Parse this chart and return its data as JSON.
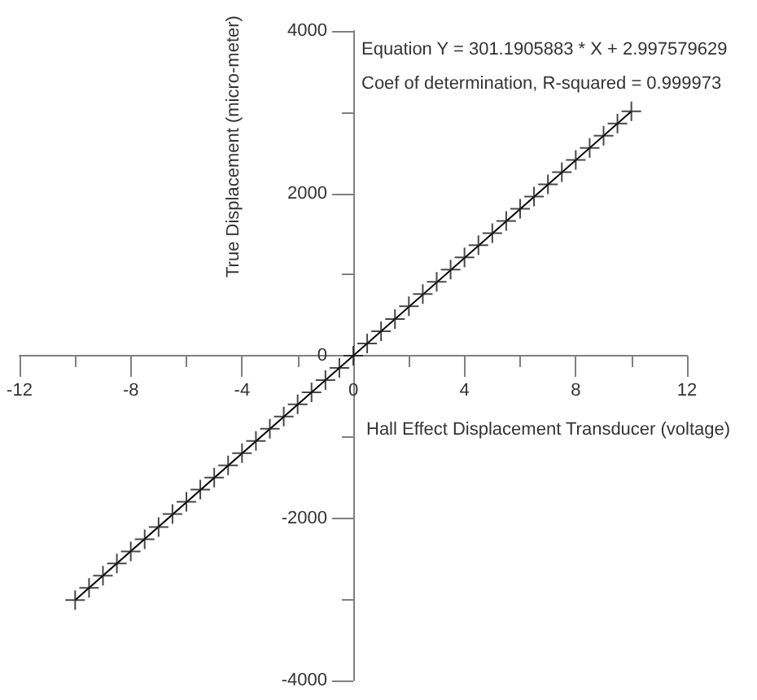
{
  "chart_data": {
    "type": "scatter",
    "xlabel": "Hall Effect Displacement Transducer (voltage)",
    "ylabel": "True Displacement (micro-meter)",
    "annotations": [
      "Equation Y = 301.1905883 * X + 2.997579629",
      "Coef of determination, R-squared = 0.999973"
    ],
    "xlim": [
      -12,
      12
    ],
    "ylim": [
      -4000,
      4000
    ],
    "xticks": [
      -12,
      {
        "value": -10,
        "label": null
      },
      -8,
      {
        "value": -6,
        "label": null
      },
      -4,
      {
        "value": -2,
        "label": null
      },
      0,
      {
        "value": 2,
        "label": null
      },
      4,
      {
        "value": 6,
        "label": null
      },
      8,
      {
        "value": 10,
        "label": null
      },
      12
    ],
    "yticks": [
      -4000,
      {
        "value": -3000,
        "label": null
      },
      -2000,
      {
        "value": -1000,
        "label": null
      },
      0,
      {
        "value": 1000,
        "label": null
      },
      2000,
      {
        "value": 3000,
        "label": null
      },
      4000
    ],
    "marker": "cross",
    "series": [
      {
        "color": "#1a1a1a",
        "x": [
          -10,
          -9.5,
          -9,
          -8.5,
          -8,
          -7.5,
          -7,
          -6.5,
          -6,
          -5.5,
          -5,
          -4.5,
          -4,
          -3.5,
          -3,
          -2.5,
          -2,
          -1.5,
          -1,
          -0.5,
          0,
          0.5,
          1,
          1.5,
          2,
          2.5,
          3,
          3.5,
          4,
          4.5,
          5,
          5.5,
          6,
          6.5,
          7,
          7.5,
          8,
          8.5,
          9,
          9.5,
          10
        ],
        "values": [
          -3010,
          -2860,
          -2710,
          -2560,
          -2410,
          -2260,
          -2110,
          -1950,
          -1800,
          -1650,
          -1500,
          -1350,
          -1200,
          -1050,
          -900,
          -750,
          -600,
          -450,
          -300,
          -150,
          0,
          150,
          300,
          450,
          610,
          760,
          910,
          1060,
          1210,
          1360,
          1510,
          1660,
          1810,
          1960,
          2110,
          2260,
          2410,
          2560,
          2710,
          2860,
          3010
        ]
      },
      {
        "type": "line",
        "color": "#000000",
        "x": [
          -10,
          10
        ],
        "values": [
          -3010,
          3010
        ],
        "marker": "none",
        "line_style": "solid"
      }
    ]
  }
}
